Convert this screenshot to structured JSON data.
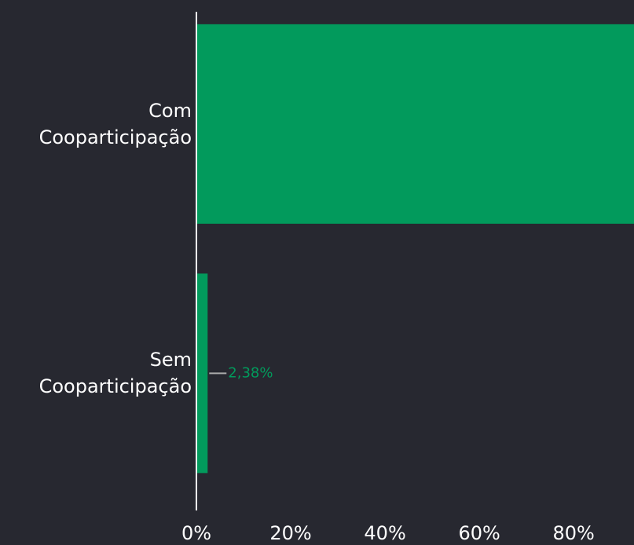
{
  "chart_data": {
    "type": "hbar",
    "categories": [
      "Com Cooparticipação",
      "Sem Cooparticipação"
    ],
    "values": [
      97.62,
      2.38
    ],
    "value_labels": [
      null,
      "2,38%"
    ],
    "color": "#029a5c",
    "xlim": [
      0,
      92.8
    ],
    "xticks": [
      {
        "value": 0,
        "label": "0%"
      },
      {
        "value": 20,
        "label": "20%"
      },
      {
        "value": 40,
        "label": "40%"
      },
      {
        "value": 60,
        "label": "60%"
      },
      {
        "value": 80,
        "label": "80%"
      }
    ]
  }
}
